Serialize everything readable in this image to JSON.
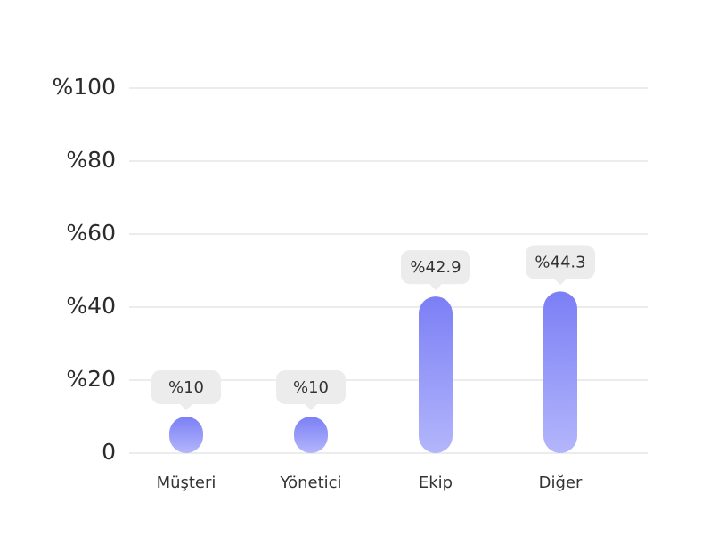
{
  "chart_data": {
    "type": "bar",
    "categories": [
      "Müşteri",
      "Yönetici",
      "Ekip",
      "Diğer"
    ],
    "values": [
      10,
      10,
      42.9,
      44.3
    ],
    "value_labels": [
      "%10",
      "%10",
      "%42.9",
      "%44.3"
    ],
    "color": "#7b7ff5",
    "ylim": [
      0,
      100
    ],
    "yticks": [
      0,
      {
        "value": 20,
        "label": "%20"
      },
      {
        "value": 40,
        "label": "%40"
      },
      {
        "value": 60,
        "label": "%60"
      },
      {
        "value": 80,
        "label": "%80"
      },
      {
        "value": 100,
        "label": "%100"
      }
    ],
    "grid": true
  }
}
